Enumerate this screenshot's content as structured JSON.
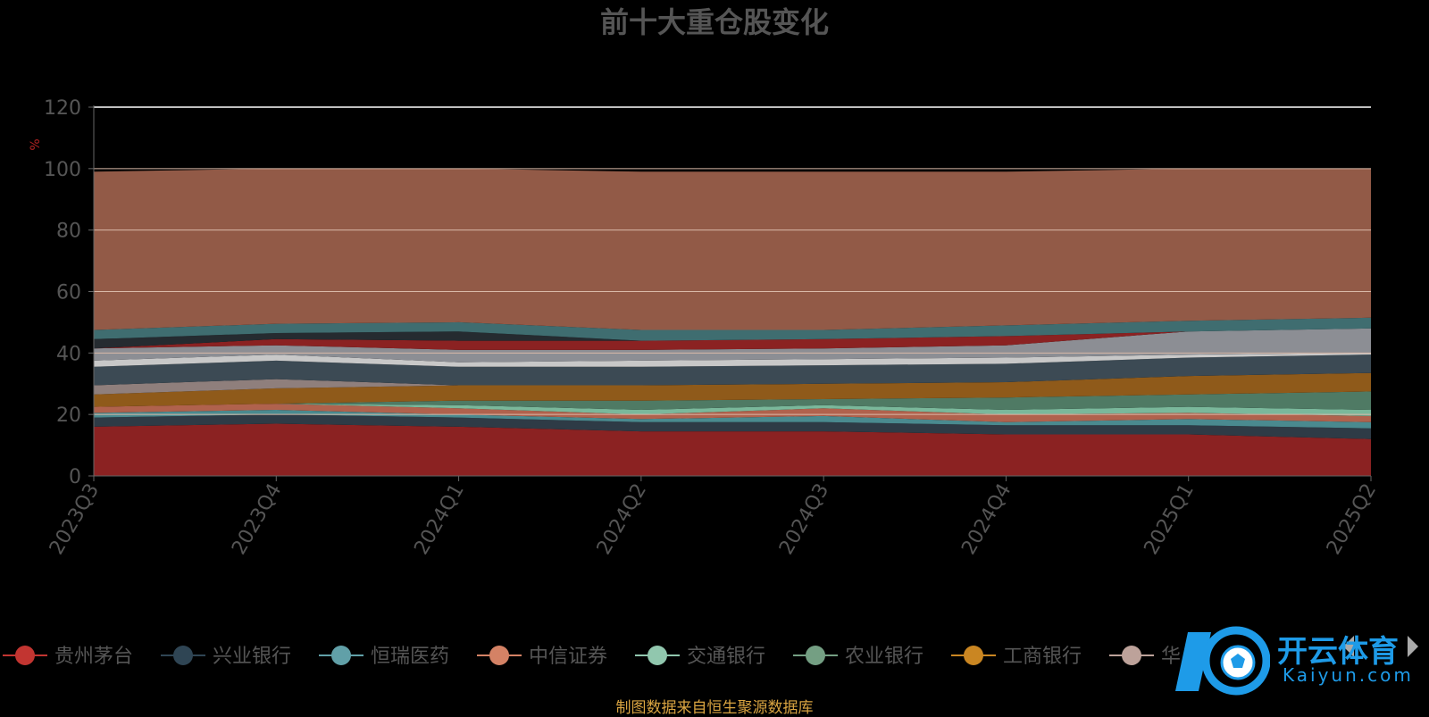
{
  "footer": "制图数据来自恒生聚源数据库",
  "logo": {
    "text": "开云体育",
    "sub": "Kaiyun.com"
  },
  "chart_data": {
    "type": "area",
    "stacked": true,
    "title": "前十大重仓股变化",
    "ylabel": "%",
    "ylim": [
      0,
      120
    ],
    "yticks": [
      0,
      20,
      40,
      60,
      80,
      100,
      120
    ],
    "grid": true,
    "x": [
      "2023Q3",
      "2023Q4",
      "2024Q1",
      "2024Q2",
      "2024Q3",
      "2024Q4",
      "2025Q1",
      "2025Q2"
    ],
    "legend_position": "bottom",
    "series": [
      {
        "name": "贵州茅台",
        "color": "#8b2222",
        "values": [
          16,
          17,
          16,
          14.5,
          14.5,
          13.5,
          13.5,
          12
        ]
      },
      {
        "name": "兴业银行",
        "color": "#2e3b46",
        "values": [
          3,
          3,
          3,
          3,
          3,
          3,
          3,
          3.5
        ]
      },
      {
        "name": "恒瑞医药",
        "color": "#4a8a8f",
        "values": [
          1.5,
          1.5,
          1,
          1,
          2,
          1,
          2,
          2
        ]
      },
      {
        "name": "中信证券",
        "color": "#b0624d",
        "values": [
          2,
          2,
          2,
          1.5,
          2.5,
          2.5,
          2,
          2
        ]
      },
      {
        "name": "交通银行",
        "color": "#7ab89b",
        "values": [
          0,
          0,
          1,
          1.5,
          1,
          1.5,
          2,
          2
        ]
      },
      {
        "name": "农业银行",
        "color": "#4f7a64",
        "values": [
          0,
          0,
          1.5,
          3,
          2,
          4,
          4,
          6
        ]
      },
      {
        "name": "工商银行",
        "color": "#8f5a1a",
        "values": [
          4,
          5,
          5,
          5,
          5,
          5,
          6,
          6
        ]
      },
      {
        "name": "华",
        "color": "#8f7f7c",
        "values": [
          3,
          3,
          0,
          0,
          0,
          0,
          0,
          0
        ]
      },
      {
        "name": "",
        "color": "#3c4a54",
        "values": [
          6,
          6,
          6,
          6,
          6,
          6,
          6,
          6
        ]
      },
      {
        "name": "",
        "color": "#c8c8c8",
        "values": [
          2,
          2,
          1.5,
          2,
          2,
          2,
          1,
          0.5
        ]
      },
      {
        "name": "",
        "color": "#8c8e94",
        "values": [
          4,
          3,
          4,
          3.5,
          3.5,
          4,
          7.5,
          8
        ]
      },
      {
        "name": "",
        "color": "#8b2222",
        "values": [
          0,
          2,
          3,
          3,
          3,
          3,
          0,
          0
        ]
      },
      {
        "name": "",
        "color": "#252b30",
        "values": [
          3,
          2,
          3,
          0,
          0,
          0,
          0,
          0
        ]
      },
      {
        "name": "",
        "color": "#3f6d70",
        "values": [
          3,
          3,
          3,
          3.5,
          3,
          3.5,
          3.5,
          3.5
        ]
      },
      {
        "name": "",
        "color": "#925a47",
        "values": [
          51.5,
          50.5,
          50,
          51.5,
          51.5,
          50,
          49.5,
          48.5
        ]
      }
    ],
    "legend": [
      {
        "name": "贵州茅台",
        "color": "#c23531"
      },
      {
        "name": "兴业银行",
        "color": "#2f4554"
      },
      {
        "name": "恒瑞医药",
        "color": "#61a0a8"
      },
      {
        "name": "中信证券",
        "color": "#d48265"
      },
      {
        "name": "交通银行",
        "color": "#91c7ae"
      },
      {
        "name": "农业银行",
        "color": "#749f83"
      },
      {
        "name": "工商银行",
        "color": "#ca8622"
      },
      {
        "name": "华",
        "color": "#bda29a"
      }
    ]
  }
}
